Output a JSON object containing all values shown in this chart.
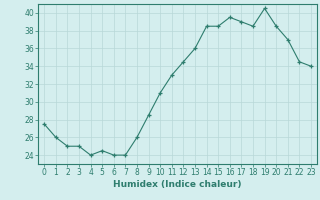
{
  "x": [
    0,
    1,
    2,
    3,
    4,
    5,
    6,
    7,
    8,
    9,
    10,
    11,
    12,
    13,
    14,
    15,
    16,
    17,
    18,
    19,
    20,
    21,
    22,
    23
  ],
  "y": [
    27.5,
    26.0,
    25.0,
    25.0,
    24.0,
    24.5,
    24.0,
    24.0,
    26.0,
    28.5,
    31.0,
    33.0,
    34.5,
    36.0,
    38.5,
    38.5,
    39.5,
    39.0,
    38.5,
    40.5,
    38.5,
    37.0,
    34.5,
    34.0
  ],
  "xlabel": "Humidex (Indice chaleur)",
  "ylabel": "",
  "xlim": [
    -0.5,
    23.5
  ],
  "ylim": [
    23.0,
    41.0
  ],
  "yticks": [
    24,
    26,
    28,
    30,
    32,
    34,
    36,
    38,
    40
  ],
  "xticks": [
    0,
    1,
    2,
    3,
    4,
    5,
    6,
    7,
    8,
    9,
    10,
    11,
    12,
    13,
    14,
    15,
    16,
    17,
    18,
    19,
    20,
    21,
    22,
    23
  ],
  "line_color": "#2e7d6e",
  "marker_color": "#2e7d6e",
  "bg_color": "#d4eeee",
  "grid_color": "#b8d8d8",
  "tick_fontsize": 5.5,
  "label_fontsize": 6.5
}
